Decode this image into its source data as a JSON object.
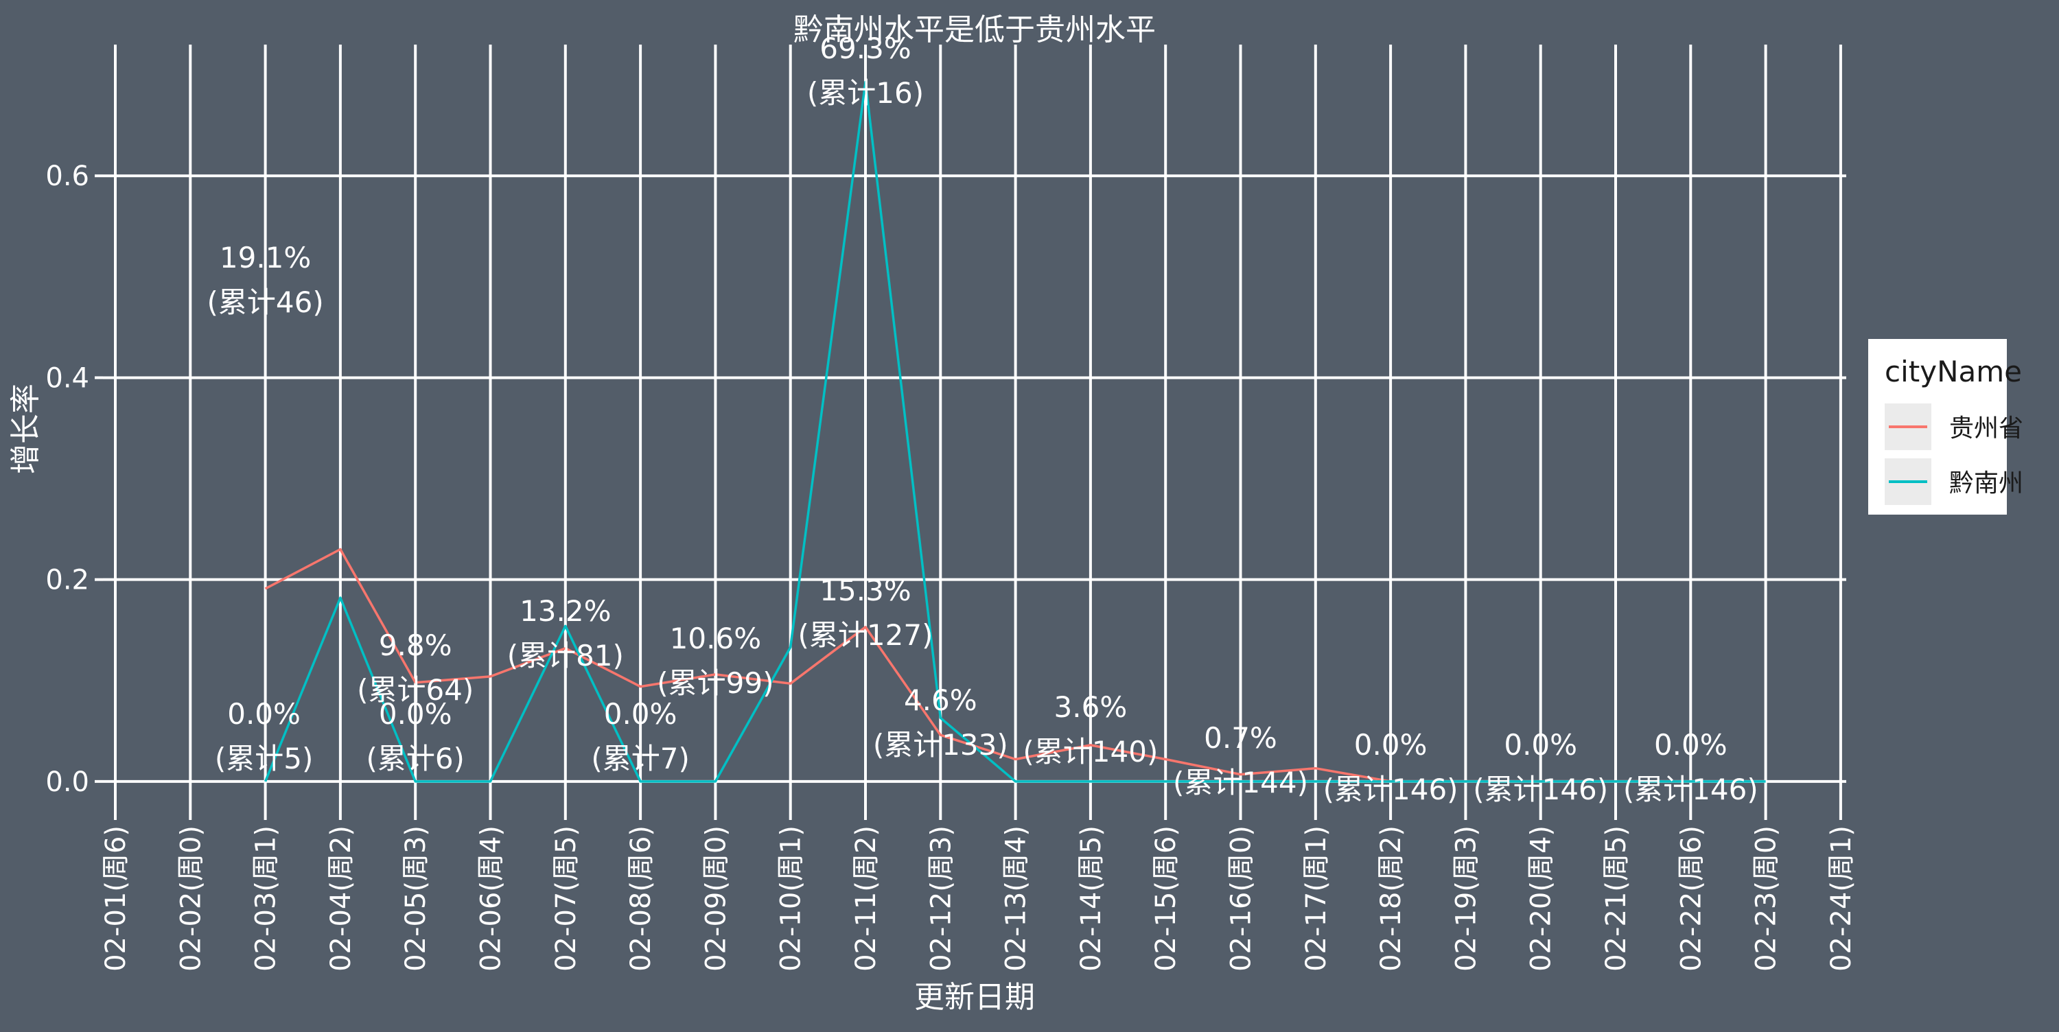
{
  "chart_data": {
    "type": "line",
    "title": "黔南州水平是低于贵州水平",
    "xlabel": "更新日期",
    "ylabel": "增长率",
    "categories": [
      "02-01(周6)",
      "02-02(周0)",
      "02-03(周1)",
      "02-04(周2)",
      "02-05(周3)",
      "02-06(周4)",
      "02-07(周5)",
      "02-08(周6)",
      "02-09(周0)",
      "02-10(周1)",
      "02-11(周2)",
      "02-12(周3)",
      "02-13(周4)",
      "02-14(周5)",
      "02-15(周6)",
      "02-16(周0)",
      "02-17(周1)",
      "02-18(周2)",
      "02-19(周3)",
      "02-20(周4)",
      "02-21(周5)",
      "02-22(周6)",
      "02-23(周0)",
      "02-24(周1)"
    ],
    "ylim": [
      -0.03,
      0.73
    ],
    "yticks": [
      0.0,
      0.2,
      0.4,
      0.6
    ],
    "ytick_labels": [
      "0.0",
      "0.2",
      "0.4",
      "0.6"
    ],
    "grid": true,
    "legend": {
      "title": "cityName",
      "position": "right"
    },
    "series": [
      {
        "name": "贵州省",
        "color": "#f8766d",
        "values": [
          null,
          null,
          0.191,
          0.23,
          0.098,
          0.104,
          0.132,
          0.094,
          0.106,
          0.097,
          0.153,
          0.046,
          0.022,
          0.036,
          0.022,
          0.007,
          0.013,
          0.0,
          0.0,
          0.0,
          0.0,
          0.0,
          null,
          null
        ]
      },
      {
        "name": "黔南州",
        "color": "#00bfc4",
        "values": [
          null,
          null,
          0.0,
          0.182,
          0.0,
          0.0,
          0.154,
          0.0,
          0.0,
          0.133,
          0.693,
          0.063,
          0.0,
          0.0,
          0.0,
          0.0,
          0.0,
          0.0,
          0.0,
          0.0,
          0.0,
          0.0,
          0.0,
          null
        ]
      }
    ],
    "annotations": [
      {
        "x": "02-03(周1)",
        "pct": "0.0%",
        "cum": "(累计5)"
      },
      {
        "x": "02-03(周1)",
        "pct": "19.1%",
        "cum": "(累计46)"
      },
      {
        "x": "02-05(周3)",
        "pct": "9.8%",
        "cum": "(累计64)"
      },
      {
        "x": "02-05(周3)",
        "pct": "0.0%",
        "cum": "(累计6)"
      },
      {
        "x": "02-07(周5)",
        "pct": "13.2%",
        "cum": "(累计81)"
      },
      {
        "x": "02-08(周6)",
        "pct": "0.0%",
        "cum": "(累计7)"
      },
      {
        "x": "02-09(周0)",
        "pct": "10.6%",
        "cum": "(累计99)"
      },
      {
        "x": "02-11(周2)",
        "pct": "69.3%",
        "cum": "(累计16)"
      },
      {
        "x": "02-11(周2)",
        "pct": "15.3%",
        "cum": "(累计127)"
      },
      {
        "x": "02-12(周3)",
        "pct": "4.6%",
        "cum": "(累计133)"
      },
      {
        "x": "02-14(周5)",
        "pct": "3.6%",
        "cum": "(累计140)"
      },
      {
        "x": "02-16(周0)",
        "pct": "0.7%",
        "cum": "(累计144)"
      },
      {
        "x": "02-18(周2)",
        "pct": "0.0%",
        "cum": "(累计146)"
      },
      {
        "x": "02-20(周4)",
        "pct": "0.0%",
        "cum": "(累计146)"
      },
      {
        "x": "02-22(周6)",
        "pct": "0.0%",
        "cum": "(累计146)"
      }
    ]
  }
}
